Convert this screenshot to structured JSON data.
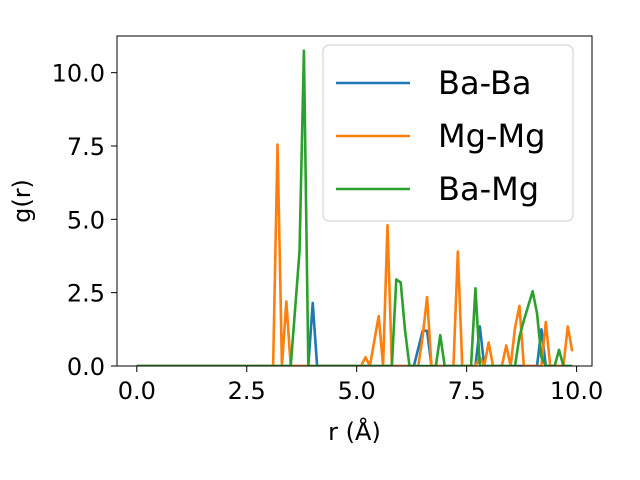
{
  "chart_data": {
    "type": "line",
    "xlabel": "r (Å)",
    "ylabel": "g(r)",
    "xlim": [
      -0.45,
      10.35
    ],
    "ylim": [
      0,
      11.25
    ],
    "xticks": [
      0.0,
      2.5,
      5.0,
      7.5,
      10.0
    ],
    "xtick_labels": [
      "0.0",
      "2.5",
      "5.0",
      "7.5",
      "10.0"
    ],
    "yticks": [
      0.0,
      2.5,
      5.0,
      7.5,
      10.0
    ],
    "ytick_labels": [
      "0.0",
      "2.5",
      "5.0",
      "7.5",
      "10.0"
    ],
    "grid": false,
    "legend_position": "upper right",
    "series": [
      {
        "name": "Ba-Ba",
        "color": "#1f77b4",
        "points": [
          [
            0.0,
            0
          ],
          [
            3.9,
            0
          ],
          [
            4.0,
            2.15
          ],
          [
            4.1,
            0
          ],
          [
            6.3,
            0
          ],
          [
            6.5,
            1.2
          ],
          [
            6.6,
            1.2
          ],
          [
            6.7,
            0
          ],
          [
            7.7,
            0
          ],
          [
            7.8,
            1.35
          ],
          [
            7.9,
            0
          ],
          [
            9.1,
            0
          ],
          [
            9.2,
            1.25
          ],
          [
            9.3,
            0
          ],
          [
            9.9,
            0
          ]
        ]
      },
      {
        "name": "Mg-Mg",
        "color": "#ff7f0e",
        "points": [
          [
            0.0,
            0
          ],
          [
            3.1,
            0
          ],
          [
            3.2,
            7.55
          ],
          [
            3.3,
            0
          ],
          [
            3.4,
            2.2
          ],
          [
            3.5,
            0
          ],
          [
            5.1,
            0
          ],
          [
            5.2,
            0.3
          ],
          [
            5.3,
            0
          ],
          [
            5.5,
            1.7
          ],
          [
            5.6,
            0
          ],
          [
            5.7,
            4.8
          ],
          [
            5.8,
            0
          ],
          [
            6.4,
            0
          ],
          [
            6.5,
            1.0
          ],
          [
            6.6,
            2.35
          ],
          [
            6.7,
            0
          ],
          [
            7.2,
            0
          ],
          [
            7.3,
            3.9
          ],
          [
            7.4,
            0
          ],
          [
            7.7,
            0
          ],
          [
            7.8,
            0.3
          ],
          [
            7.9,
            0
          ],
          [
            8.0,
            0.8
          ],
          [
            8.1,
            0
          ],
          [
            8.3,
            0
          ],
          [
            8.4,
            0.7
          ],
          [
            8.5,
            0
          ],
          [
            8.6,
            1.3
          ],
          [
            8.7,
            2.05
          ],
          [
            8.8,
            0
          ],
          [
            9.2,
            0
          ],
          [
            9.3,
            1.5
          ],
          [
            9.4,
            0
          ],
          [
            9.7,
            0
          ],
          [
            9.8,
            1.35
          ],
          [
            9.9,
            0.5
          ]
        ]
      },
      {
        "name": "Ba-Mg",
        "color": "#2ca02c",
        "points": [
          [
            0.0,
            0
          ],
          [
            3.5,
            0
          ],
          [
            3.7,
            3.9
          ],
          [
            3.8,
            10.75
          ],
          [
            3.9,
            0
          ],
          [
            5.8,
            0
          ],
          [
            5.9,
            2.95
          ],
          [
            6.0,
            2.85
          ],
          [
            6.1,
            1.2
          ],
          [
            6.2,
            0
          ],
          [
            6.8,
            0
          ],
          [
            6.9,
            1.05
          ],
          [
            7.0,
            0
          ],
          [
            7.6,
            0
          ],
          [
            7.7,
            2.65
          ],
          [
            7.8,
            0
          ],
          [
            8.6,
            0
          ],
          [
            8.7,
            1.0
          ],
          [
            8.8,
            1.55
          ],
          [
            8.9,
            2.05
          ],
          [
            9.0,
            2.55
          ],
          [
            9.1,
            1.8
          ],
          [
            9.2,
            0.3
          ],
          [
            9.3,
            0
          ],
          [
            9.5,
            0
          ],
          [
            9.6,
            0.55
          ],
          [
            9.7,
            0
          ],
          [
            9.9,
            0
          ]
        ]
      }
    ]
  }
}
